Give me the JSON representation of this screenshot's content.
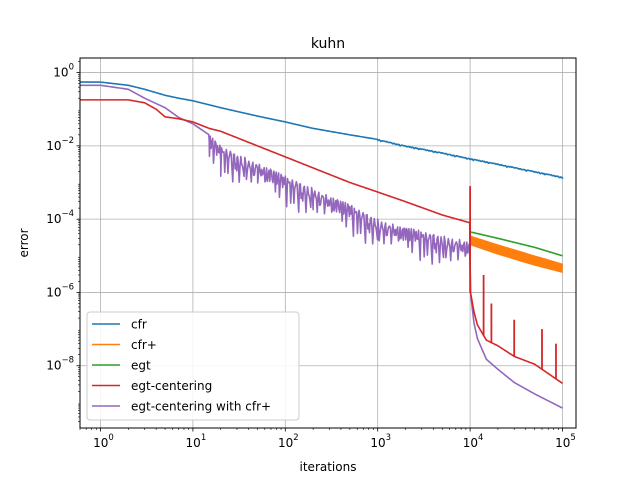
{
  "chart_data": {
    "type": "line",
    "title": "kuhn",
    "xlabel": "iterations",
    "ylabel": "error",
    "xscale": "log",
    "yscale": "log",
    "xlim": [
      0.6,
      140000
    ],
    "ylim": [
      2e-10,
      2.5
    ],
    "x_ticks": [
      1,
      10,
      100,
      1000,
      10000,
      100000
    ],
    "x_tick_labels": [
      {
        "base": "10",
        "exp": "0"
      },
      {
        "base": "10",
        "exp": "1"
      },
      {
        "base": "10",
        "exp": "2"
      },
      {
        "base": "10",
        "exp": "3"
      },
      {
        "base": "10",
        "exp": "4"
      },
      {
        "base": "10",
        "exp": "5"
      }
    ],
    "y_ticks": [
      1,
      0.01,
      0.0001,
      1e-06,
      1e-08
    ],
    "y_tick_labels": [
      {
        "base": "10",
        "exp": "0"
      },
      {
        "base": "10",
        "exp": "−2"
      },
      {
        "base": "10",
        "exp": "−4"
      },
      {
        "base": "10",
        "exp": "−6"
      },
      {
        "base": "10",
        "exp": "−8"
      }
    ],
    "grid": true,
    "legend_position": "lower-left",
    "series": [
      {
        "name": "cfr",
        "color": "#1f77b4",
        "x": [
          0.6,
          1,
          2,
          3,
          5,
          7,
          10,
          20,
          50,
          100,
          200,
          500,
          1000,
          2000,
          5000,
          10000,
          20000,
          50000,
          100000
        ],
        "y": [
          0.55,
          0.55,
          0.45,
          0.35,
          0.24,
          0.2,
          0.17,
          0.11,
          0.065,
          0.045,
          0.03,
          0.02,
          0.015,
          0.01,
          0.0065,
          0.0045,
          0.0032,
          0.002,
          0.0014
        ],
        "noise": {
          "start": 1000,
          "amp": 0.03,
          "period": 23
        }
      },
      {
        "name": "cfr+",
        "color": "#ff7f0e",
        "x": [
          10000,
          20000,
          50000,
          100000
        ],
        "y": [
          3.5e-05,
          2e-05,
          1e-05,
          6e-06
        ],
        "band_low": [
          2e-05,
          1.1e-05,
          5.5e-06,
          3.5e-06
        ],
        "noise": {
          "start": 10000,
          "amp": 0.45,
          "period": 3
        }
      },
      {
        "name": "egt",
        "color": "#2ca02c",
        "x": [
          10000,
          20000,
          50000,
          100000
        ],
        "y": [
          4.5e-05,
          3e-05,
          1.7e-05,
          1e-05
        ]
      },
      {
        "name": "egt-centering",
        "color": "#d62728",
        "x": [
          0.6,
          1,
          2,
          3,
          4,
          5,
          7,
          10,
          15,
          20,
          50,
          100,
          200,
          500,
          1000,
          2000,
          5000,
          9900,
          10100,
          11000,
          12000,
          15000,
          20000,
          30000,
          50000,
          100000
        ],
        "y": [
          0.18,
          0.18,
          0.18,
          0.15,
          0.1,
          0.062,
          0.055,
          0.045,
          0.03,
          0.025,
          0.01,
          0.005,
          0.0025,
          0.001,
          0.00055,
          0.0003,
          0.00013,
          8e-05,
          1e-06,
          3e-07,
          1.3e-07,
          5e-08,
          3.5e-08,
          1.8e-08,
          1.1e-08,
          3.3e-09
        ],
        "spikes": [
          {
            "x": 10000,
            "y": 0.0008
          },
          {
            "x": 14000,
            "y": 3e-06
          },
          {
            "x": 17000,
            "y": 5e-07
          },
          {
            "x": 30000,
            "y": 1.8e-07
          },
          {
            "x": 60000,
            "y": 1e-07
          },
          {
            "x": 85000,
            "y": 4e-08
          }
        ]
      },
      {
        "name": "egt-centering with cfr+",
        "color": "#9467bd",
        "x": [
          0.6,
          1,
          2,
          3,
          5,
          7,
          10,
          15,
          20,
          30,
          50,
          100,
          200,
          500,
          1000,
          2000,
          5000,
          9900,
          10100,
          11000,
          12000,
          15000,
          20000,
          30000,
          50000,
          100000
        ],
        "y": [
          0.45,
          0.45,
          0.35,
          0.2,
          0.11,
          0.06,
          0.04,
          0.02,
          0.01,
          0.006,
          0.0035,
          0.0015,
          0.0007,
          0.00025,
          0.0001,
          6e-05,
          3.5e-05,
          2.5e-05,
          1e-06,
          1.5e-07,
          5.5e-08,
          1.5e-08,
          8e-09,
          3.5e-09,
          1.7e-09,
          7e-10
        ],
        "noise": {
          "start": 15,
          "end": 9900,
          "amp": 0.75,
          "period": 5
        }
      }
    ]
  }
}
